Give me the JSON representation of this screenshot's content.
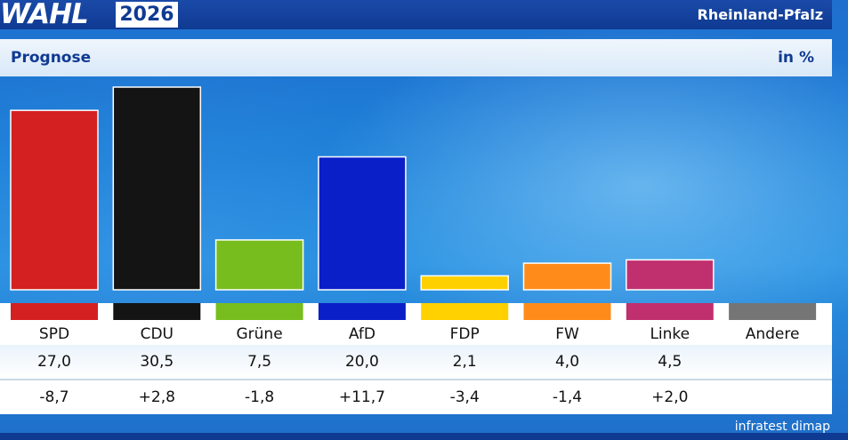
{
  "header": {
    "logo_text": "WAHL",
    "year": "2026",
    "region": "Rheinland-Pfalz"
  },
  "subheader": {
    "title": "Prognose",
    "unit": "in %"
  },
  "source": "infratest dimap",
  "chart_data": {
    "type": "bar",
    "title": "Prognose",
    "ylabel": "in %",
    "categories": [
      "SPD",
      "CDU",
      "Grüne",
      "AfD",
      "FDP",
      "FW",
      "Linke",
      "Andere"
    ],
    "values": [
      27.0,
      30.5,
      7.5,
      20.0,
      2.1,
      4.0,
      4.5,
      null
    ],
    "value_labels": [
      "27,0",
      "30,5",
      "7,5",
      "20,0",
      "2,1",
      "4,0",
      "4,5",
      ""
    ],
    "change_labels": [
      "-8,7",
      "+2,8",
      "-1,8",
      "+11,7",
      "-3,4",
      "-1,4",
      "+2,0",
      ""
    ],
    "colors": [
      "#d42020",
      "#141414",
      "#78bd1e",
      "#0a1fc8",
      "#ffd000",
      "#ff8c1a",
      "#c0306e",
      "#757575"
    ],
    "ylim": [
      0,
      30.5
    ],
    "grid": false,
    "legend": "none"
  }
}
